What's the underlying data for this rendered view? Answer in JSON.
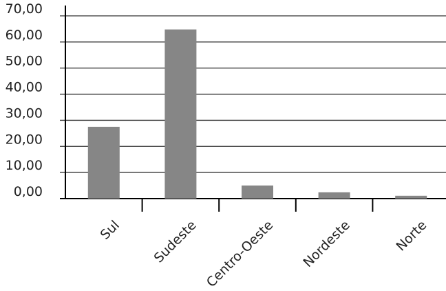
{
  "chart_data": {
    "type": "bar",
    "title": "",
    "xlabel": "",
    "ylabel": "",
    "categories": [
      "Sul",
      "Sudeste",
      "Centro-Oeste",
      "Nordeste",
      "Norte"
    ],
    "values": [
      27.5,
      64.8,
      5.0,
      2.4,
      1.1
    ],
    "ylim": [
      0,
      70
    ],
    "yticks": [
      "0,00",
      "10,00",
      "20,00",
      "30,00",
      "40,00",
      "50,00",
      "60,00",
      "70,00"
    ],
    "grid": true,
    "legend": "none",
    "bar_color": "#868686"
  }
}
